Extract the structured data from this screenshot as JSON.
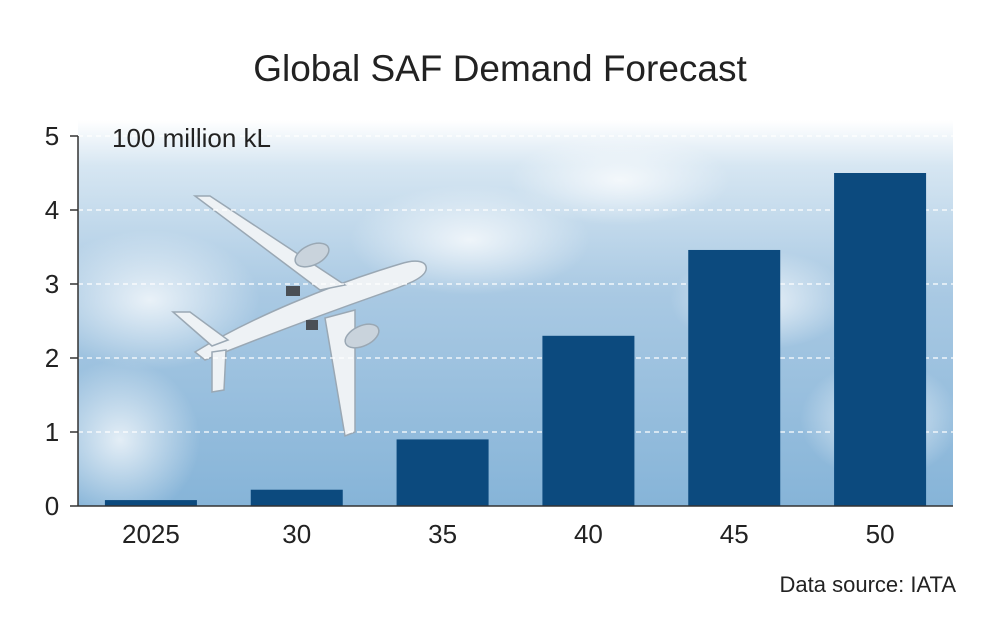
{
  "title": "Global SAF Demand Forecast",
  "source": "Data source: IATA",
  "colors": {
    "bar": "#0c4a7e",
    "sky_top": "#ffffff",
    "sky_mid": "#bcd6ea",
    "sky_bottom": "#82b2d7",
    "axis": "#333333",
    "gridline": "#ffffff"
  },
  "chart_data": {
    "type": "bar",
    "title": "Global SAF Demand Forecast",
    "unit_label": "100 million kL",
    "categories": [
      "2025",
      "30",
      "35",
      "40",
      "45",
      "50"
    ],
    "values": [
      0.08,
      0.22,
      0.9,
      2.3,
      3.46,
      4.5
    ],
    "ylim": [
      0,
      5
    ],
    "yticks": [
      "0",
      "1",
      "2",
      "3",
      "4",
      "5"
    ],
    "grid": "dashed horizontal",
    "background": "sky photo with airplane"
  }
}
